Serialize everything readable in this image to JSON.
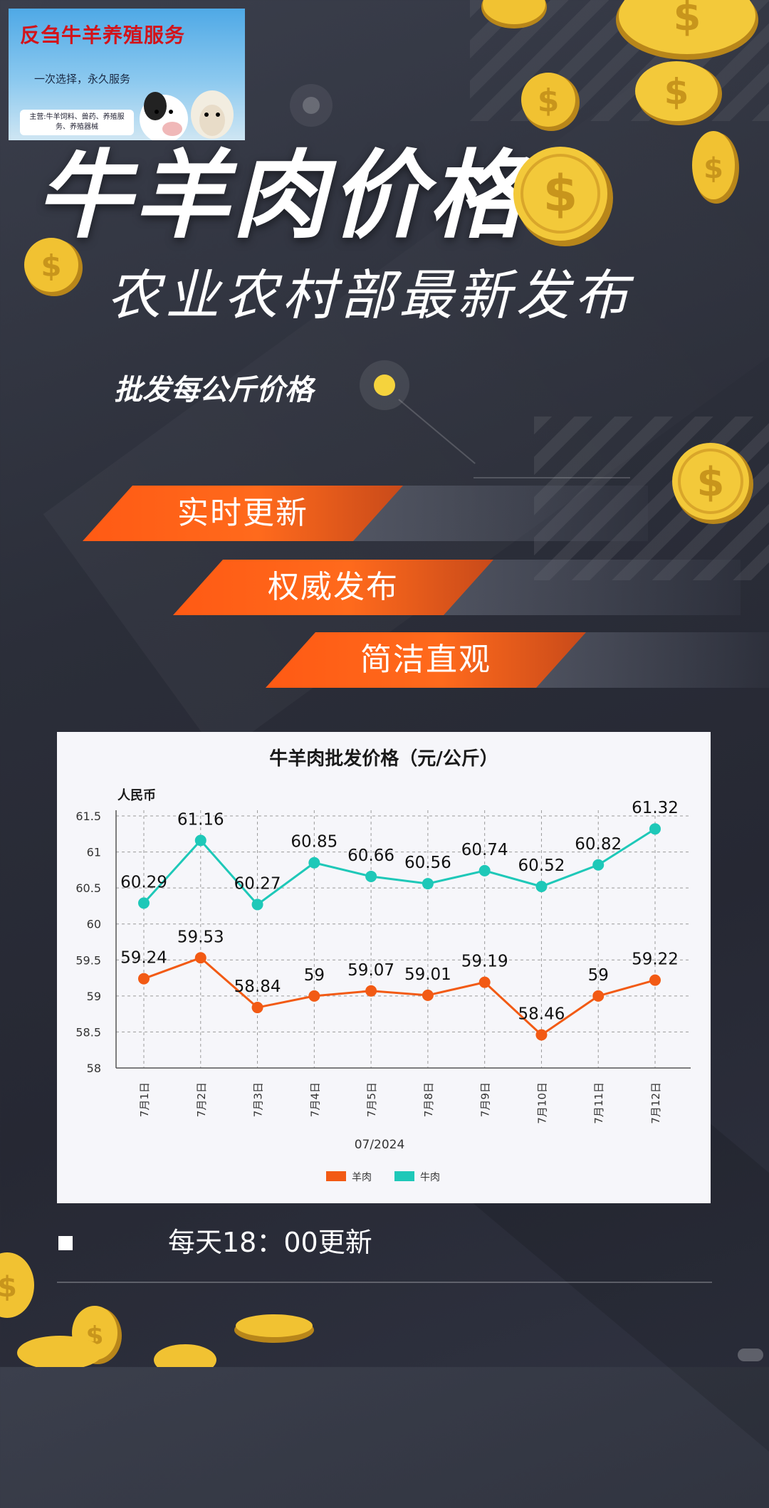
{
  "ad": {
    "title": "反刍牛羊养殖服务",
    "slogan": "一次选择，永久服务",
    "services": "主营:牛羊饲料、兽药、养殖服务、养殖器械"
  },
  "headline": "牛羊肉价格",
  "subheadline": "农业农村部最新发布",
  "tagline": "批发每公斤价格",
  "features": [
    "实时更新",
    "权威发布",
    "简洁直观"
  ],
  "footer": {
    "update_note": "每天18：00更新"
  },
  "colors": {
    "accent": "#ff5a14",
    "beef": "#1ec8b8",
    "mutton": "#f25a14",
    "coin": "#f1c232"
  },
  "chart_data": {
    "type": "line",
    "title": "牛羊肉批发价格（元/公斤）",
    "ylabel": "人民币",
    "xlabel": "07/2024",
    "ylim": [
      58,
      61.5
    ],
    "yticks": [
      "58",
      "58.5",
      "59",
      "59.5",
      "60",
      "60.5",
      "61",
      "61.5"
    ],
    "categories": [
      "7月1日",
      "7月2日",
      "7月3日",
      "7月4日",
      "7月5日",
      "7月8日",
      "7月9日",
      "7月10日",
      "7月11日",
      "7月12日"
    ],
    "series": [
      {
        "name": "羊肉",
        "color": "#f25a14",
        "values": [
          59.24,
          59.53,
          58.84,
          59,
          59.07,
          59.01,
          59.19,
          58.46,
          59,
          59.22
        ]
      },
      {
        "name": "牛肉",
        "color": "#1ec8b8",
        "values": [
          60.29,
          61.16,
          60.27,
          60.85,
          60.66,
          60.56,
          60.74,
          60.52,
          60.82,
          61.32
        ]
      }
    ],
    "grid": true,
    "legend": "bottom"
  }
}
